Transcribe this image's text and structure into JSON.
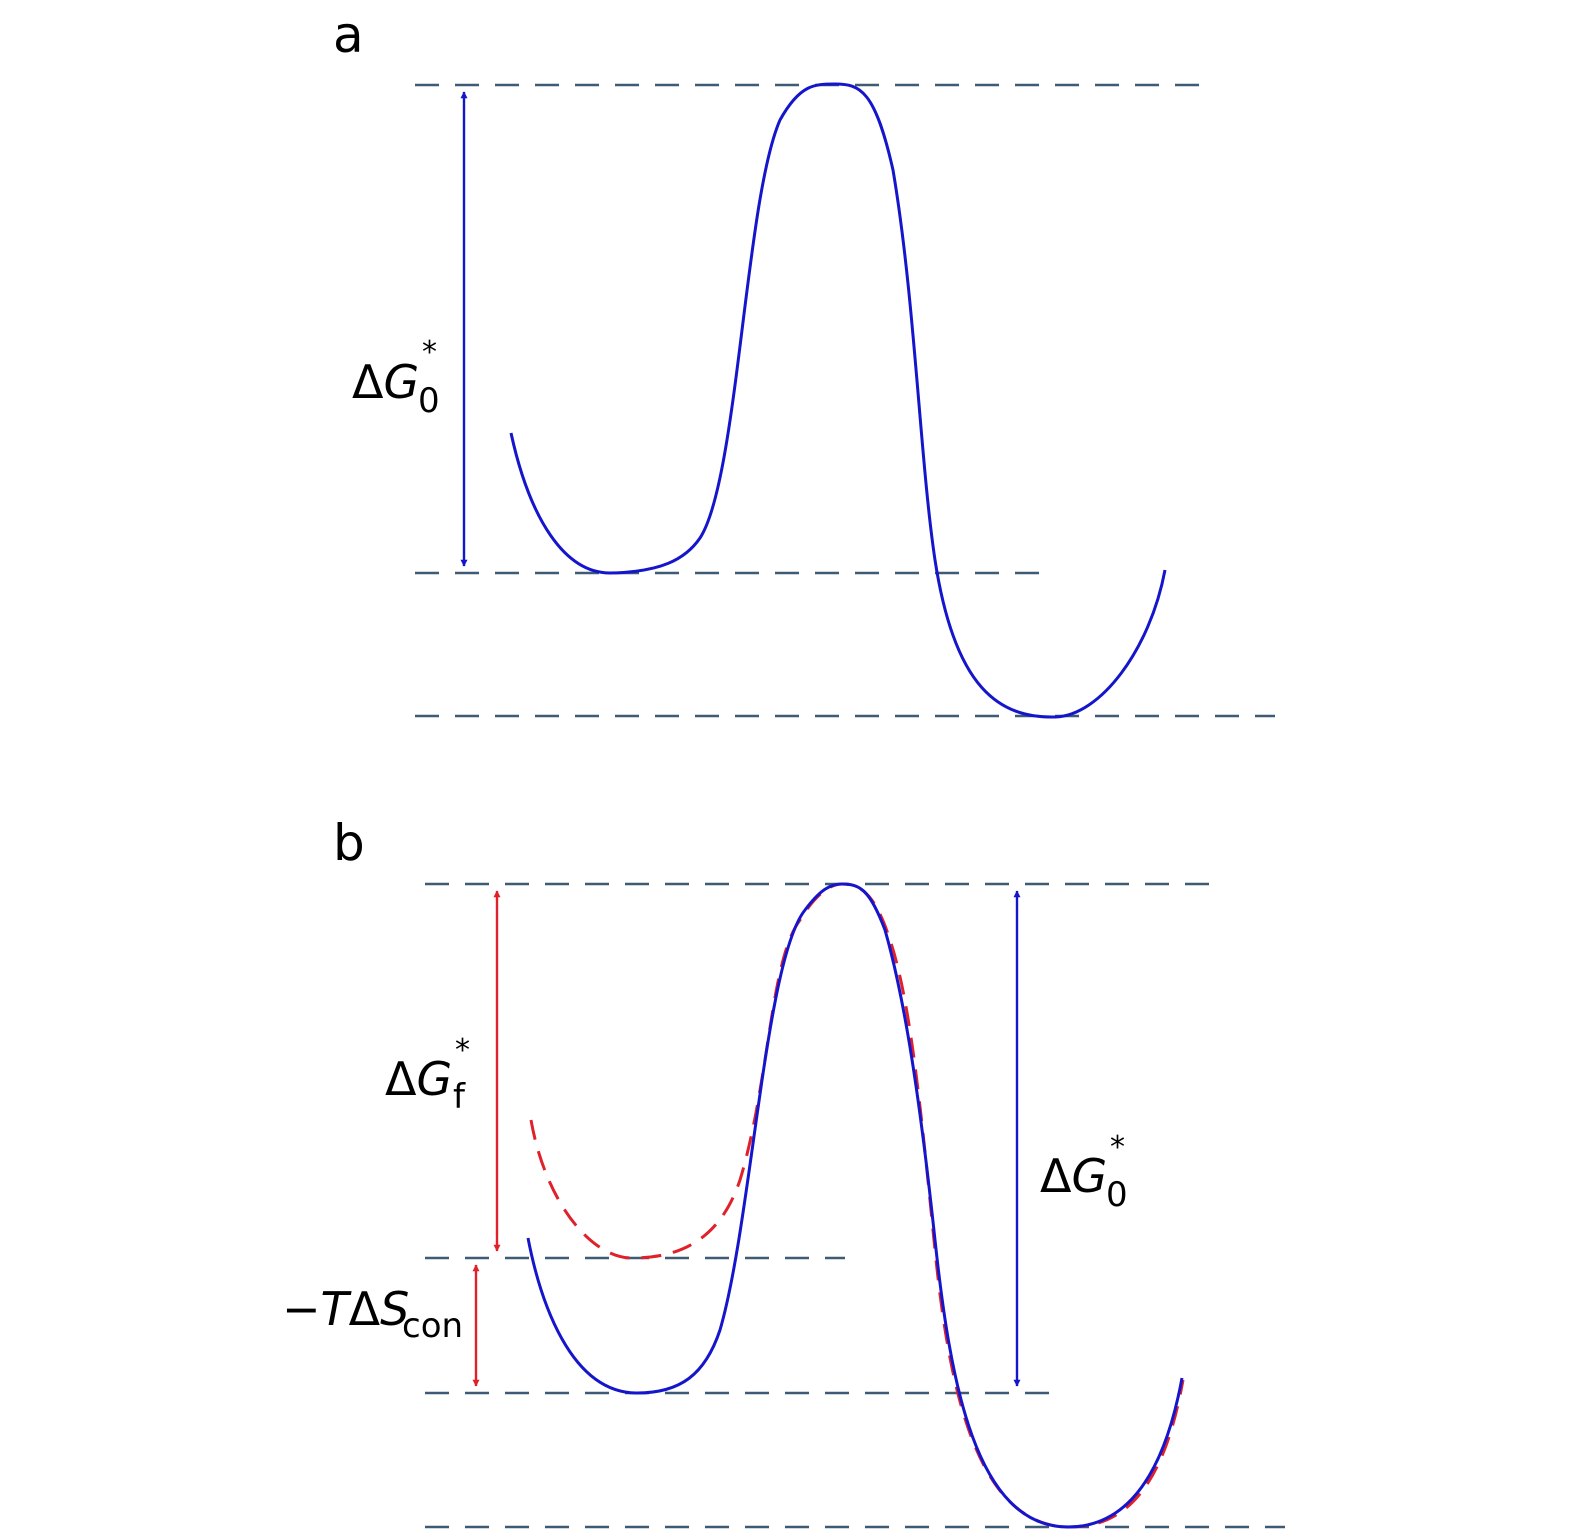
{
  "panels": [
    {
      "label": "a",
      "annotations": {
        "barrier": {
          "delta": "Δ",
          "symbol": "G",
          "sub": "0",
          "sup": "*"
        }
      }
    },
    {
      "label": "b",
      "annotations": {
        "barrier_folded": {
          "delta": "Δ",
          "symbol": "G",
          "sub": "f",
          "sup": "*"
        },
        "entropy": {
          "prefix": "−",
          "T": "T",
          "delta": "Δ",
          "symbol": "S",
          "sub": "con"
        },
        "barrier_original": {
          "delta": "Δ",
          "symbol": "G",
          "sub": "0",
          "sup": "*"
        }
      }
    }
  ],
  "colors": {
    "curve": "#1515cc",
    "modified_curve": "#e0202a",
    "guide_lines": "#3f5a75"
  }
}
